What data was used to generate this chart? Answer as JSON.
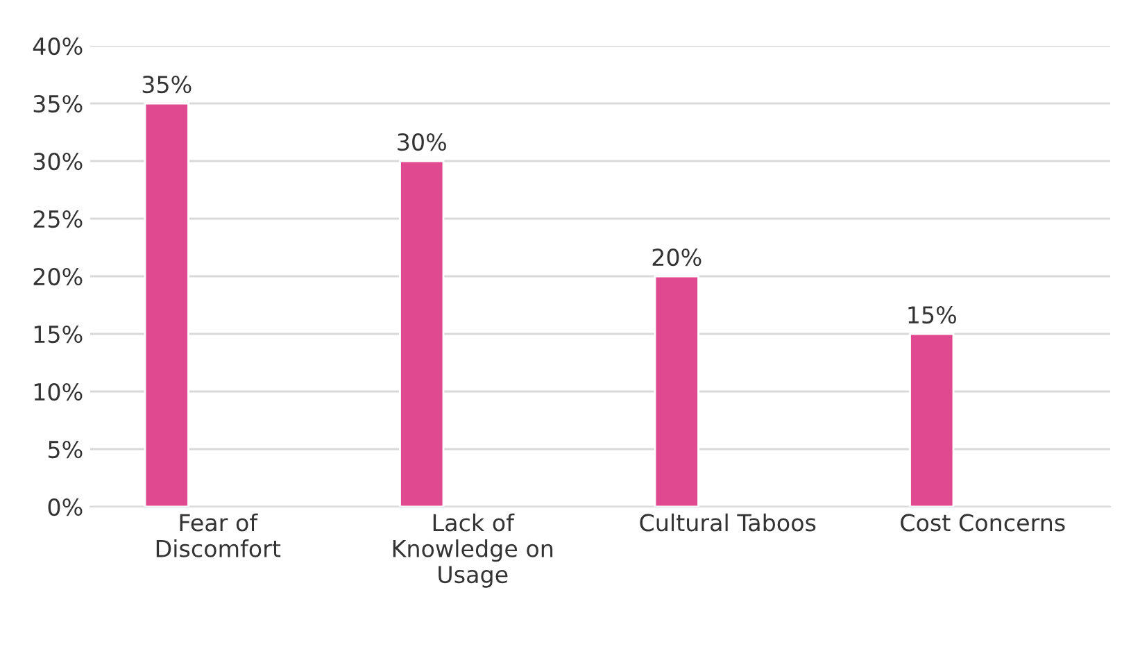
{
  "chart_data": {
    "type": "bar",
    "categories": [
      "Fear of\nDiscomfort",
      "Lack of\nKnowledge on\nUsage",
      "Cultural Taboos",
      "Cost Concerns"
    ],
    "values": [
      35,
      30,
      20,
      15
    ],
    "color": "#e0498f",
    "value_labels": [
      "35%",
      "30%",
      "20%",
      "15%"
    ],
    "ylim": [
      0,
      40
    ],
    "yticks": [
      {
        "value": 0,
        "label": "0%"
      },
      {
        "value": 5,
        "label": "5%"
      },
      {
        "value": 10,
        "label": "10%"
      },
      {
        "value": 15,
        "label": "15%"
      },
      {
        "value": 20,
        "label": "20%"
      },
      {
        "value": 25,
        "label": "25%"
      },
      {
        "value": 30,
        "label": "30%"
      },
      {
        "value": 35,
        "label": "35%"
      },
      {
        "value": 40,
        "label": "40%"
      }
    ],
    "grid": "y"
  }
}
